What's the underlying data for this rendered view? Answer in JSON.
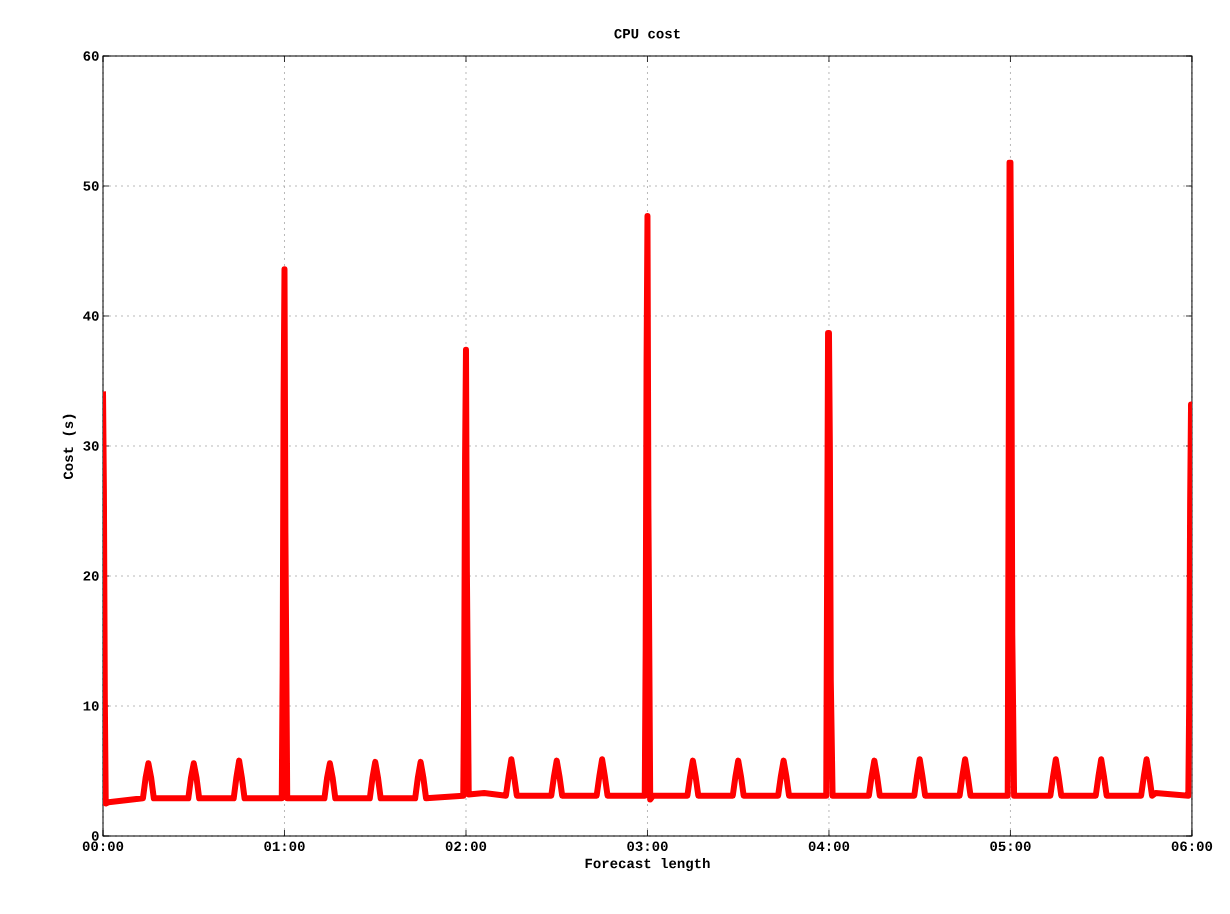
{
  "chart_data": {
    "type": "line",
    "title": "CPU cost",
    "xlabel": "Forecast length",
    "ylabel": "Cost (s)",
    "xlim": [
      0,
      6
    ],
    "ylim": [
      0,
      60
    ],
    "xticks": [
      {
        "value": 0,
        "label": "00:00"
      },
      {
        "value": 1,
        "label": "01:00"
      },
      {
        "value": 2,
        "label": "02:00"
      },
      {
        "value": 3,
        "label": "03:00"
      },
      {
        "value": 4,
        "label": "04:00"
      },
      {
        "value": 5,
        "label": "05:00"
      },
      {
        "value": 6,
        "label": "06:00"
      }
    ],
    "yticks": [
      0,
      10,
      20,
      30,
      40,
      50,
      60
    ],
    "grid": true,
    "x": [
      0,
      0.005,
      0.01,
      0.015,
      0.03,
      0.22,
      0.235,
      0.25,
      0.265,
      0.28,
      0.47,
      0.485,
      0.5,
      0.515,
      0.53,
      0.72,
      0.735,
      0.75,
      0.765,
      0.78,
      0.985,
      0.99,
      0.995,
      1.0,
      1.005,
      1.015,
      1.22,
      1.235,
      1.25,
      1.265,
      1.28,
      1.47,
      1.485,
      1.5,
      1.515,
      1.53,
      1.72,
      1.735,
      1.75,
      1.765,
      1.78,
      1.985,
      1.99,
      1.995,
      2.0,
      2.005,
      2.015,
      2.1,
      2.22,
      2.235,
      2.25,
      2.265,
      2.28,
      2.47,
      2.485,
      2.5,
      2.515,
      2.53,
      2.72,
      2.735,
      2.75,
      2.765,
      2.78,
      2.985,
      2.99,
      2.995,
      3.0,
      3.005,
      3.015,
      3.03,
      3.22,
      3.235,
      3.25,
      3.265,
      3.28,
      3.47,
      3.485,
      3.5,
      3.515,
      3.53,
      3.72,
      3.735,
      3.75,
      3.765,
      3.78,
      3.985,
      3.99,
      3.995,
      4.0,
      4.005,
      4.01,
      4.02,
      4.22,
      4.235,
      4.25,
      4.265,
      4.28,
      4.47,
      4.485,
      4.5,
      4.515,
      4.53,
      4.72,
      4.735,
      4.75,
      4.765,
      4.78,
      4.985,
      4.99,
      4.995,
      5.0,
      5.005,
      5.01,
      5.02,
      5.22,
      5.235,
      5.25,
      5.265,
      5.28,
      5.47,
      5.485,
      5.5,
      5.515,
      5.53,
      5.72,
      5.735,
      5.75,
      5.765,
      5.78,
      5.8,
      5.98,
      5.985,
      5.99,
      5.995,
      6.0
    ],
    "series": [
      {
        "color": "#ff0000",
        "values": [
          34.2,
          26.5,
          10.5,
          2.5,
          2.6,
          2.9,
          4.5,
          5.6,
          4.5,
          2.9,
          2.9,
          4.5,
          5.6,
          4.5,
          2.9,
          2.9,
          4.5,
          5.8,
          4.5,
          2.9,
          2.9,
          13.2,
          33.5,
          43.6,
          23.3,
          2.9,
          2.9,
          4.5,
          5.6,
          4.5,
          2.9,
          2.9,
          4.5,
          5.7,
          4.5,
          2.9,
          2.9,
          4.5,
          5.7,
          4.5,
          2.9,
          3.1,
          11.8,
          29,
          37.4,
          20.3,
          3.2,
          3.3,
          3.1,
          4.6,
          5.9,
          4.6,
          3.1,
          3.1,
          4.6,
          5.8,
          4.6,
          3.1,
          3.1,
          4.6,
          5.9,
          4.6,
          3.1,
          3.1,
          14.3,
          36.5,
          47.7,
          25.4,
          2.8,
          3.1,
          3.1,
          4.6,
          5.8,
          4.6,
          3.1,
          3.1,
          4.6,
          5.8,
          4.6,
          3.1,
          3.1,
          4.6,
          5.8,
          4.6,
          3.1,
          3.1,
          21,
          38.7,
          38.7,
          29.8,
          12,
          3.1,
          3.1,
          4.6,
          5.8,
          4.6,
          3.1,
          3.1,
          4.6,
          5.9,
          4.6,
          3.1,
          3.1,
          4.6,
          5.9,
          4.6,
          3.1,
          3.1,
          27.7,
          51.8,
          51.8,
          39.6,
          15.5,
          3.1,
          3.1,
          4.6,
          5.9,
          4.6,
          3.1,
          3.1,
          4.6,
          5.9,
          4.6,
          3.1,
          3.1,
          4.6,
          5.9,
          4.6,
          3.1,
          3.3,
          3.1,
          10.5,
          25.6,
          33.2,
          25.3
        ]
      }
    ]
  }
}
